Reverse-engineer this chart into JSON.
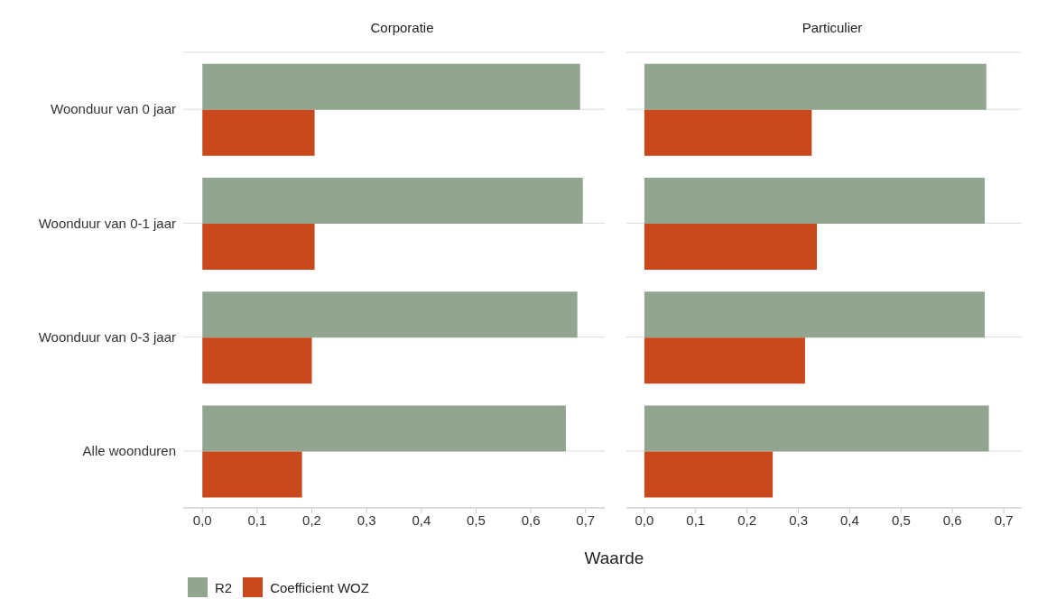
{
  "chart_data": [
    {
      "type": "bar",
      "orientation": "horizontal",
      "title": "Corporatie",
      "xlabel": "Waarde",
      "categories": [
        "Woonduur van 0 jaar",
        "Woonduur van 0-1 jaar",
        "Woonduur van 0-3 jaar",
        "Alle woonduren"
      ],
      "series": [
        {
          "name": "R2",
          "color": "#92a590",
          "values": [
            0.69,
            0.695,
            0.685,
            0.664
          ]
        },
        {
          "name": "Coefficient WOZ",
          "color": "#c8481c",
          "values": [
            0.205,
            0.205,
            0.2,
            0.182
          ]
        }
      ],
      "xlim": [
        -0.035,
        0.735
      ],
      "xticks": [
        {
          "value": 0,
          "label": "0,0"
        },
        {
          "value": 0.1,
          "label": "0,1"
        },
        {
          "value": 0.2,
          "label": "0,2"
        },
        {
          "value": 0.3,
          "label": "0,3"
        },
        {
          "value": 0.4,
          "label": "0,4"
        },
        {
          "value": 0.5,
          "label": "0,5"
        },
        {
          "value": 0.6,
          "label": "0,6"
        },
        {
          "value": 0.7,
          "label": "0,7"
        }
      ],
      "grid": "y",
      "legend": "bottom left"
    },
    {
      "type": "bar",
      "orientation": "horizontal",
      "title": "Particulier",
      "categories": [
        null,
        null,
        null,
        null
      ],
      "series": [
        {
          "color": "#92a590",
          "values": [
            0.666,
            0.663,
            0.663,
            0.671
          ]
        },
        {
          "color": "#c8481c",
          "values": [
            0.326,
            0.336,
            0.313,
            0.25
          ]
        }
      ],
      "xlim": [
        -0.035,
        0.735
      ],
      "xticks": [
        {
          "value": 0,
          "label": "0,0"
        },
        {
          "value": 0.1,
          "label": "0,1"
        },
        {
          "value": 0.2,
          "label": "0,2"
        },
        {
          "value": 0.3,
          "label": "0,3"
        },
        {
          "value": 0.4,
          "label": "0,4"
        },
        {
          "value": 0.5,
          "label": "0,5"
        },
        {
          "value": 0.6,
          "label": "0,6"
        },
        {
          "value": 0.7,
          "label": "0,7"
        }
      ],
      "grid": "y",
      "tick_labels": "x"
    }
  ]
}
